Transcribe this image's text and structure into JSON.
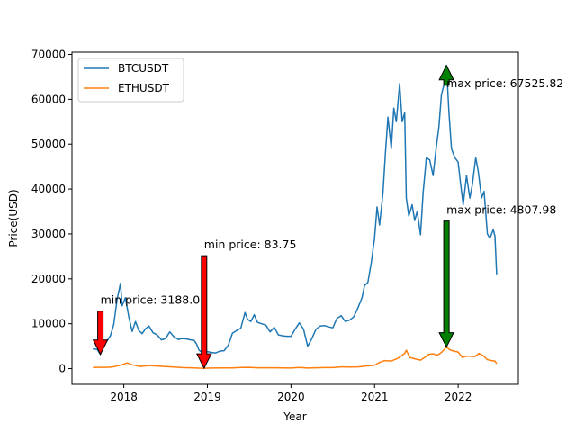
{
  "chart_data": {
    "type": "line",
    "xlabel": "Year",
    "ylabel": "Price(USD)",
    "xlim": [
      2017.38,
      2022.72
    ],
    "ylim": [
      -3500,
      70500
    ],
    "xticks": [
      2018,
      2019,
      2020,
      2021,
      2022
    ],
    "yticks": [
      0,
      10000,
      20000,
      30000,
      40000,
      50000,
      60000,
      70000
    ],
    "grid": false,
    "legend_position": "top-left",
    "series": [
      {
        "name": "BTCUSDT",
        "color": "#1f77b4",
        "points": [
          [
            2017.63,
            4400
          ],
          [
            2017.68,
            4300
          ],
          [
            2017.72,
            3188.01
          ],
          [
            2017.76,
            5600
          ],
          [
            2017.8,
            6200
          ],
          [
            2017.84,
            7300
          ],
          [
            2017.88,
            9800
          ],
          [
            2017.92,
            15500
          ],
          [
            2017.96,
            19000
          ],
          [
            2017.98,
            14000
          ],
          [
            2018.02,
            15800
          ],
          [
            2018.06,
            11500
          ],
          [
            2018.1,
            8300
          ],
          [
            2018.14,
            10500
          ],
          [
            2018.18,
            8500
          ],
          [
            2018.22,
            7800
          ],
          [
            2018.26,
            8900
          ],
          [
            2018.3,
            9500
          ],
          [
            2018.35,
            8000
          ],
          [
            2018.4,
            7500
          ],
          [
            2018.45,
            6400
          ],
          [
            2018.5,
            6700
          ],
          [
            2018.55,
            8200
          ],
          [
            2018.6,
            7100
          ],
          [
            2018.65,
            6500
          ],
          [
            2018.7,
            6700
          ],
          [
            2018.75,
            6600
          ],
          [
            2018.8,
            6400
          ],
          [
            2018.84,
            6300
          ],
          [
            2018.87,
            5500
          ],
          [
            2018.9,
            4100
          ],
          [
            2018.93,
            3700
          ],
          [
            2018.96,
            3500
          ],
          [
            2019.0,
            3800
          ],
          [
            2019.05,
            3600
          ],
          [
            2019.1,
            3500
          ],
          [
            2019.15,
            3900
          ],
          [
            2019.2,
            4000
          ],
          [
            2019.25,
            5200
          ],
          [
            2019.3,
            7900
          ],
          [
            2019.35,
            8500
          ],
          [
            2019.4,
            9000
          ],
          [
            2019.45,
            12500
          ],
          [
            2019.48,
            11000
          ],
          [
            2019.52,
            10500
          ],
          [
            2019.56,
            12000
          ],
          [
            2019.6,
            10300
          ],
          [
            2019.65,
            10000
          ],
          [
            2019.7,
            9700
          ],
          [
            2019.75,
            8200
          ],
          [
            2019.8,
            9200
          ],
          [
            2019.85,
            7500
          ],
          [
            2019.9,
            7300
          ],
          [
            2019.95,
            7200
          ],
          [
            2020.0,
            7200
          ],
          [
            2020.05,
            8800
          ],
          [
            2020.1,
            10200
          ],
          [
            2020.15,
            8800
          ],
          [
            2020.2,
            5000
          ],
          [
            2020.25,
            6700
          ],
          [
            2020.3,
            8800
          ],
          [
            2020.35,
            9500
          ],
          [
            2020.4,
            9600
          ],
          [
            2020.45,
            9300
          ],
          [
            2020.5,
            9100
          ],
          [
            2020.55,
            11200
          ],
          [
            2020.6,
            11800
          ],
          [
            2020.65,
            10500
          ],
          [
            2020.7,
            10800
          ],
          [
            2020.75,
            11500
          ],
          [
            2020.8,
            13500
          ],
          [
            2020.85,
            15800
          ],
          [
            2020.88,
            18500
          ],
          [
            2020.92,
            19200
          ],
          [
            2020.96,
            23500
          ],
          [
            2021.0,
            29000
          ],
          [
            2021.03,
            36000
          ],
          [
            2021.06,
            32000
          ],
          [
            2021.1,
            39000
          ],
          [
            2021.13,
            48000
          ],
          [
            2021.16,
            56000
          ],
          [
            2021.2,
            49000
          ],
          [
            2021.23,
            58000
          ],
          [
            2021.26,
            55000
          ],
          [
            2021.3,
            63500
          ],
          [
            2021.33,
            55000
          ],
          [
            2021.36,
            57000
          ],
          [
            2021.38,
            38000
          ],
          [
            2021.41,
            34000
          ],
          [
            2021.45,
            36500
          ],
          [
            2021.48,
            33000
          ],
          [
            2021.51,
            35000
          ],
          [
            2021.55,
            29800
          ],
          [
            2021.58,
            39000
          ],
          [
            2021.62,
            47000
          ],
          [
            2021.66,
            46500
          ],
          [
            2021.7,
            43000
          ],
          [
            2021.73,
            48000
          ],
          [
            2021.77,
            54000
          ],
          [
            2021.8,
            61000
          ],
          [
            2021.84,
            64000
          ],
          [
            2021.86,
            67525.82
          ],
          [
            2021.89,
            57000
          ],
          [
            2021.92,
            49000
          ],
          [
            2021.96,
            47000
          ],
          [
            2022.0,
            46000
          ],
          [
            2022.03,
            41000
          ],
          [
            2022.06,
            36500
          ],
          [
            2022.1,
            43000
          ],
          [
            2022.14,
            38000
          ],
          [
            2022.17,
            41000
          ],
          [
            2022.21,
            47000
          ],
          [
            2022.24,
            44000
          ],
          [
            2022.28,
            38000
          ],
          [
            2022.31,
            39500
          ],
          [
            2022.35,
            30000
          ],
          [
            2022.38,
            29000
          ],
          [
            2022.42,
            31000
          ],
          [
            2022.44,
            29500
          ],
          [
            2022.46,
            21000
          ]
        ]
      },
      {
        "name": "ETHUSDT",
        "color": "#ff7f0e",
        "points": [
          [
            2017.63,
            300
          ],
          [
            2017.7,
            300
          ],
          [
            2017.78,
            290
          ],
          [
            2017.86,
            350
          ],
          [
            2017.94,
            700
          ],
          [
            2018.0,
            1000
          ],
          [
            2018.04,
            1300
          ],
          [
            2018.1,
            850
          ],
          [
            2018.2,
            500
          ],
          [
            2018.3,
            700
          ],
          [
            2018.4,
            600
          ],
          [
            2018.5,
            450
          ],
          [
            2018.6,
            350
          ],
          [
            2018.7,
            230
          ],
          [
            2018.8,
            200
          ],
          [
            2018.9,
            110
          ],
          [
            2018.96,
            83.75
          ],
          [
            2019.05,
            120
          ],
          [
            2019.2,
            140
          ],
          [
            2019.3,
            170
          ],
          [
            2019.4,
            260
          ],
          [
            2019.5,
            300
          ],
          [
            2019.6,
            200
          ],
          [
            2019.7,
            180
          ],
          [
            2019.8,
            180
          ],
          [
            2019.9,
            140
          ],
          [
            2020.0,
            130
          ],
          [
            2020.1,
            250
          ],
          [
            2020.2,
            120
          ],
          [
            2020.3,
            200
          ],
          [
            2020.4,
            240
          ],
          [
            2020.5,
            230
          ],
          [
            2020.6,
            400
          ],
          [
            2020.7,
            370
          ],
          [
            2020.8,
            390
          ],
          [
            2020.9,
            600
          ],
          [
            2021.0,
            750
          ],
          [
            2021.05,
            1300
          ],
          [
            2021.12,
            1800
          ],
          [
            2021.2,
            1700
          ],
          [
            2021.28,
            2300
          ],
          [
            2021.36,
            3400
          ],
          [
            2021.38,
            4100
          ],
          [
            2021.42,
            2500
          ],
          [
            2021.5,
            2100
          ],
          [
            2021.55,
            1900
          ],
          [
            2021.6,
            2500
          ],
          [
            2021.65,
            3200
          ],
          [
            2021.7,
            3300
          ],
          [
            2021.75,
            3000
          ],
          [
            2021.8,
            3600
          ],
          [
            2021.84,
            4400
          ],
          [
            2021.86,
            4807.98
          ],
          [
            2021.9,
            4200
          ],
          [
            2021.95,
            3900
          ],
          [
            2022.0,
            3700
          ],
          [
            2022.05,
            2500
          ],
          [
            2022.1,
            2800
          ],
          [
            2022.2,
            2700
          ],
          [
            2022.25,
            3400
          ],
          [
            2022.3,
            2900
          ],
          [
            2022.35,
            2000
          ],
          [
            2022.4,
            1800
          ],
          [
            2022.44,
            1700
          ],
          [
            2022.46,
            1100
          ]
        ]
      }
    ],
    "annotations": [
      {
        "text": "min price: 3188.01",
        "x": 2017.72,
        "y": 3188.01,
        "arrow": "down",
        "color": "#ff0000"
      },
      {
        "text": "min price: 83.75",
        "x": 2018.96,
        "y": 83.75,
        "arrow": "down",
        "color": "#ff0000"
      },
      {
        "text": "max price: 67525.82",
        "x": 2021.86,
        "y": 67525.82,
        "arrow": "up",
        "color": "#008000"
      },
      {
        "text": "max price: 4807.98",
        "x": 2021.86,
        "y": 4807.98,
        "arrow": "down",
        "color": "#008000"
      }
    ]
  }
}
